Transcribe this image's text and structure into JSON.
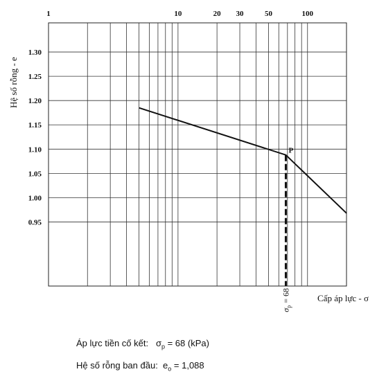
{
  "chart_data": {
    "type": "line",
    "xscale": "log",
    "xlim": [
      1,
      200
    ],
    "ylim": [
      0.818,
      1.36
    ],
    "xlabel": "Cấp áp lực - σ",
    "ylabel": "Hệ số rỗng - e",
    "x_tick_labels": [
      {
        "value": 1,
        "label": "1"
      },
      {
        "value": 10,
        "label": "10"
      },
      {
        "value": 20,
        "label": "20"
      },
      {
        "value": 30,
        "label": "30"
      },
      {
        "value": 50,
        "label": "50"
      },
      {
        "value": 100,
        "label": "100"
      }
    ],
    "y_tick_labels": [
      {
        "value": 1.3,
        "label": "1.30"
      },
      {
        "value": 1.25,
        "label": "1.25"
      },
      {
        "value": 1.2,
        "label": "1.20"
      },
      {
        "value": 1.15,
        "label": "1.15"
      },
      {
        "value": 1.1,
        "label": "1.10"
      },
      {
        "value": 1.05,
        "label": "1.05"
      },
      {
        "value": 1.0,
        "label": "1.00"
      },
      {
        "value": 0.95,
        "label": "0.95"
      }
    ],
    "x_gridlines": [
      2,
      3,
      4,
      5,
      6,
      7,
      8,
      9,
      10,
      20,
      30,
      40,
      50,
      60,
      70,
      80,
      90,
      100
    ],
    "y_gridlines": [
      1.3,
      1.25,
      1.2,
      1.15,
      1.1,
      1.05,
      1.0,
      0.95
    ],
    "series": [
      {
        "x": [
          5,
          68,
          200
        ],
        "y": [
          1.185,
          1.088,
          0.968
        ]
      }
    ],
    "point": {
      "label": "P",
      "x": 68,
      "y": 1.088
    },
    "marker": {
      "x": 68,
      "label": "σp = 68"
    }
  },
  "info": {
    "preconsolidation_label": "Áp lực tiền cố kết:",
    "preconsolidation_symbol": "σ",
    "preconsolidation_sub": "p",
    "preconsolidation_value": " = 68 (kPa)",
    "void_ratio_label": "Hệ số rỗng ban đầu:",
    "void_ratio_symbol": "e",
    "void_ratio_sub": "o",
    "void_ratio_value": " = 1,088"
  }
}
